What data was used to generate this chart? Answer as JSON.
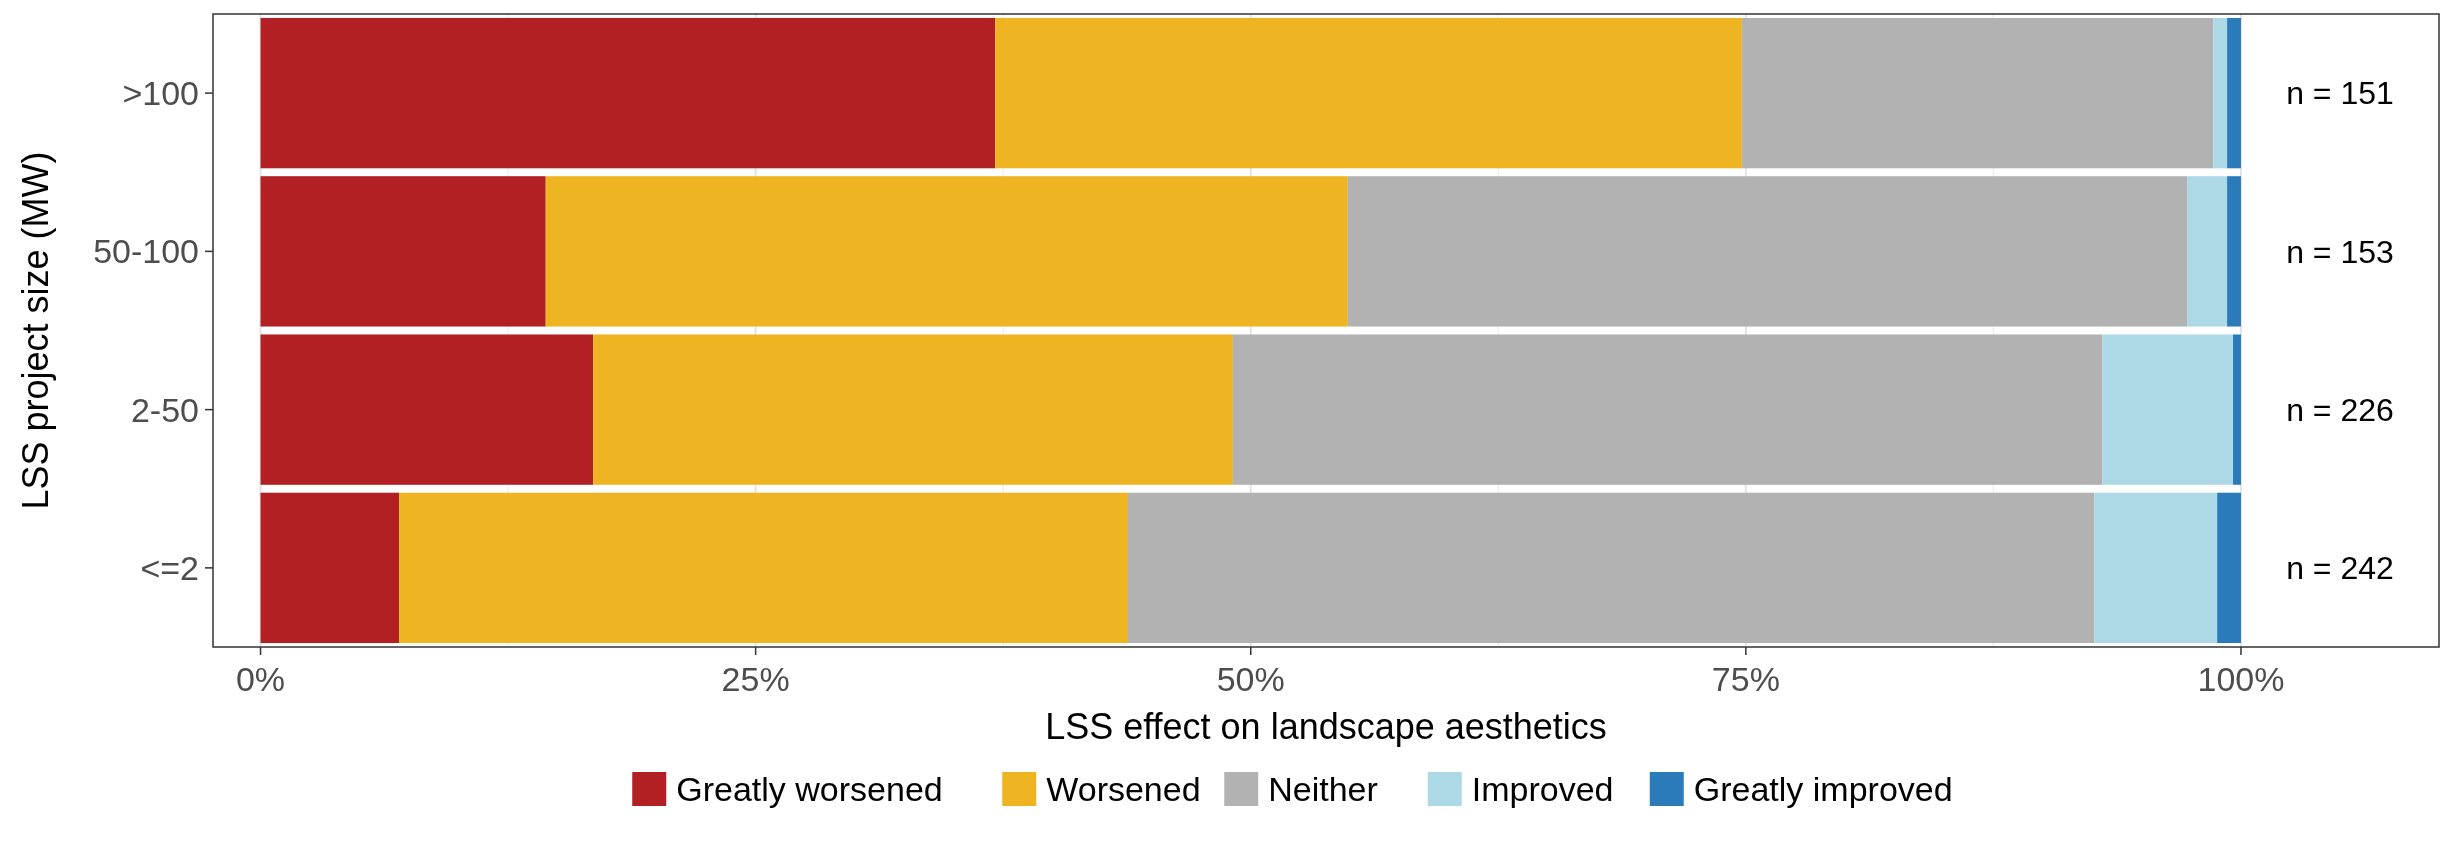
{
  "chart_data": {
    "type": "bar",
    "orientation": "horizontal",
    "stacked": true,
    "categories": [
      ">100",
      "50-100",
      "2-50",
      "<=2"
    ],
    "xlabel": "LSS effect on landscape aesthetics",
    "ylabel": "LSS project size (MW)",
    "series": [
      {
        "name": "Greatly worsened",
        "color": "#b22024",
        "values": [
          37.1,
          14.4,
          16.8,
          7.0
        ]
      },
      {
        "name": "Worsened",
        "color": "#eeb422",
        "values": [
          37.7,
          40.5,
          32.3,
          36.8
        ]
      },
      {
        "name": "Neither",
        "color": "#b2b2b2",
        "values": [
          23.8,
          42.4,
          43.9,
          48.8
        ]
      },
      {
        "name": "Improved",
        "color": "#add8e6",
        "values": [
          0.7,
          2.0,
          6.6,
          6.2
        ]
      },
      {
        "name": "Greatly improved",
        "color": "#2b7bba",
        "values": [
          0.7,
          0.7,
          0.4,
          1.2
        ]
      }
    ],
    "xlim": [
      -2.4,
      110
    ],
    "xticks": [
      {
        "value": 0,
        "label": "0%"
      },
      {
        "value": 25,
        "label": "25%"
      },
      {
        "value": 50,
        "label": "50%"
      },
      {
        "value": 75,
        "label": "75%"
      },
      {
        "value": 100,
        "label": "100%"
      }
    ],
    "annotations": [
      "n = 151",
      "n = 153",
      "n = 226",
      "n = 242"
    ],
    "grid": "x",
    "legend": "bottom"
  }
}
